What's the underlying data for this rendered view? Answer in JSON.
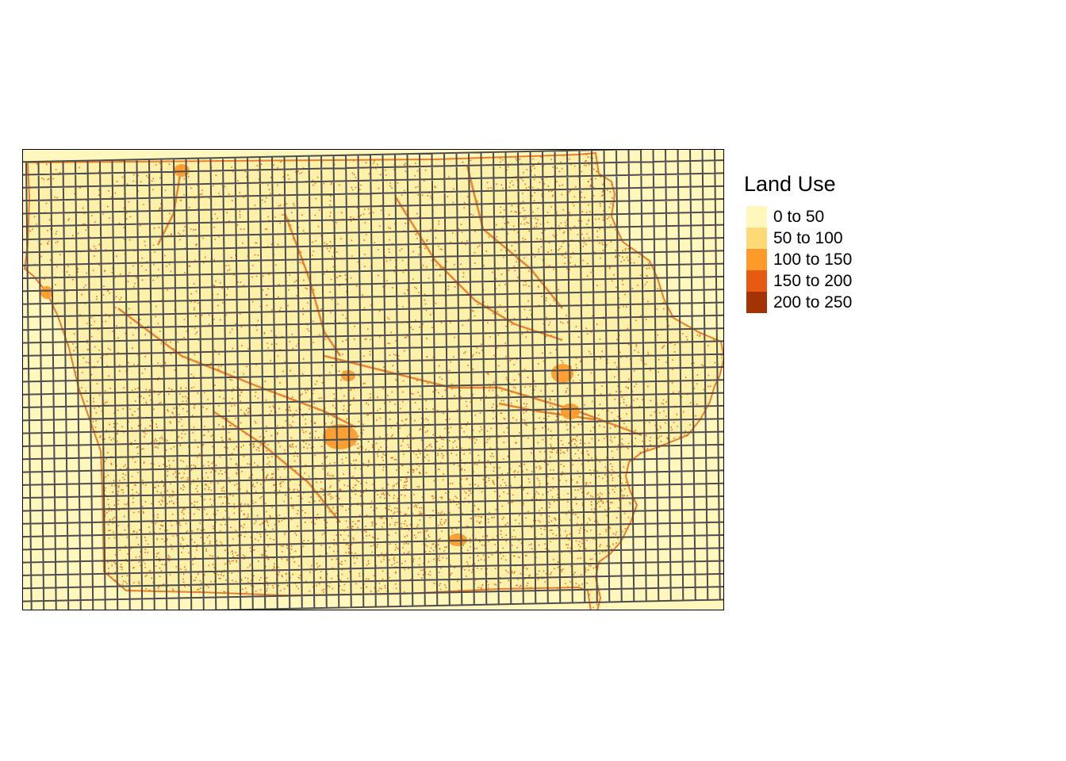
{
  "legend": {
    "title": "Land Use",
    "items": [
      {
        "label": "0 to 50",
        "color": "#fff7bc"
      },
      {
        "label": "50 to 100",
        "color": "#fed976"
      },
      {
        "label": "100 to 150",
        "color": "#fd9a2a"
      },
      {
        "label": "150 to 200",
        "color": "#e65a12"
      },
      {
        "label": "200 to 250",
        "color": "#a33205"
      }
    ]
  },
  "map": {
    "background_color": "#fff7bc",
    "grid_color": "#4d4d4d",
    "dense_color": "#e8701a",
    "urban_color": "#fd9a2a"
  }
}
